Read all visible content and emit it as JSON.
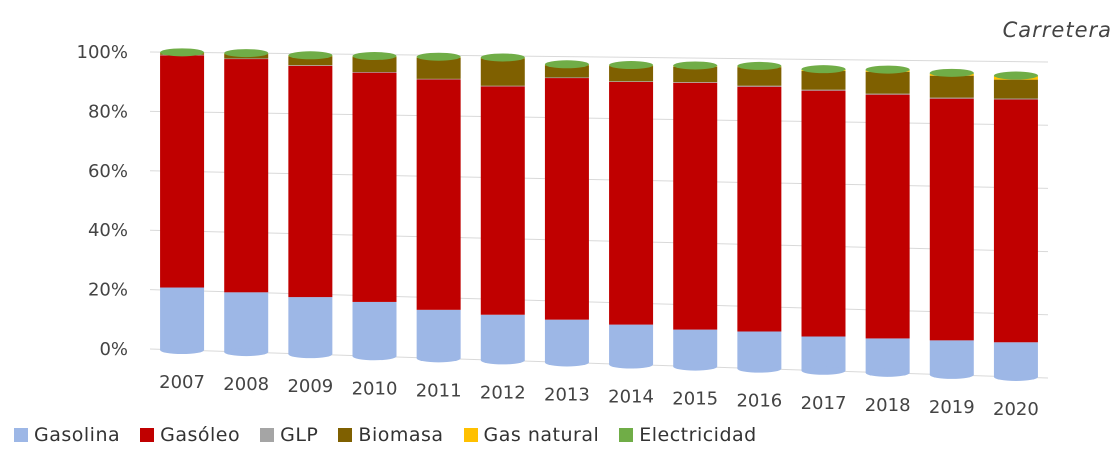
{
  "chart_data": {
    "type": "bar",
    "stacked": true,
    "subtitle": "Carretera",
    "categories": [
      "2007",
      "2008",
      "2009",
      "2010",
      "2011",
      "2012",
      "2013",
      "2014",
      "2015",
      "2016",
      "2017",
      "2018",
      "2019",
      "2020"
    ],
    "y_ticks": [
      "0%",
      "20%",
      "40%",
      "60%",
      "80%",
      "100%"
    ],
    "ylim": [
      0,
      100
    ],
    "grid": true,
    "legend_position": "bottom",
    "series": [
      {
        "name": "Gasolina",
        "color": "#9DB7E6",
        "values": [
          21,
          20,
          19,
          18,
          16,
          15,
          14,
          13,
          12,
          12,
          11,
          11,
          11,
          11
        ]
      },
      {
        "name": "Gasóleo",
        "color": "#C00000",
        "values": [
          78,
          78,
          77,
          76,
          76,
          75,
          79,
          79,
          80,
          79,
          79,
          78,
          77,
          77
        ]
      },
      {
        "name": "GLP",
        "color": "#A5A5A5",
        "values": [
          0.2,
          0.2,
          0.2,
          0.2,
          0.2,
          0.2,
          0.2,
          0.2,
          0.2,
          0.3,
          0.3,
          0.3,
          0.3,
          0.3
        ]
      },
      {
        "name": "Biomasa",
        "color": "#7F6000",
        "values": [
          0.5,
          1.5,
          3,
          5,
          7,
          9,
          4,
          5,
          5,
          6,
          6,
          7,
          7,
          6
        ]
      },
      {
        "name": "Gas natural",
        "color": "#FFC000",
        "values": [
          0.1,
          0.1,
          0.1,
          0.1,
          0.1,
          0.1,
          0.1,
          0.1,
          0.2,
          0.2,
          0.3,
          0.4,
          0.6,
          1
        ]
      },
      {
        "name": "Electricidad",
        "color": "#70AD47",
        "values": [
          0.2,
          0.2,
          0.2,
          0.2,
          0.2,
          0.2,
          0.2,
          0.2,
          0.2,
          0.2,
          0.3,
          0.3,
          0.3,
          0.3
        ]
      }
    ]
  }
}
